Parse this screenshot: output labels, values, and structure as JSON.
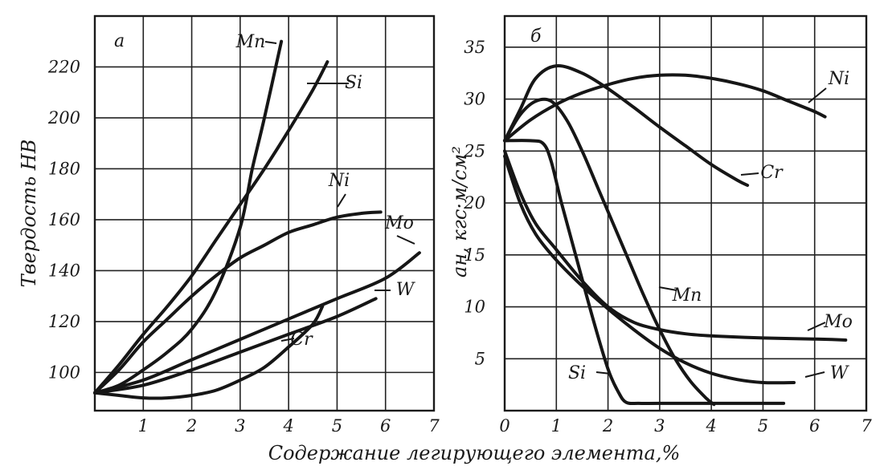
{
  "xlabel_common": "Содержание легирующего элемента,%",
  "chart_data": [
    {
      "type": "line",
      "panel_label": "а",
      "ylabel": "Твердость HB",
      "xlabel": "Содержание легирующего элемента,%",
      "xlim": [
        0,
        7
      ],
      "ylim": [
        85,
        240
      ],
      "x_ticks": [
        "1",
        "2",
        "3",
        "4",
        "5",
        "6",
        "7"
      ],
      "y_ticks": [
        "100",
        "120",
        "140",
        "160",
        "180",
        "200",
        "220"
      ],
      "x_tick_values": [
        1,
        2,
        3,
        4,
        5,
        6,
        7
      ],
      "y_tick_values": [
        100,
        120,
        140,
        160,
        180,
        200,
        220
      ],
      "grid": true,
      "series": [
        {
          "name": "Mn",
          "x": [
            0,
            0.5,
            1,
            1.5,
            2,
            2.5,
            3,
            3.25,
            3.5,
            3.85
          ],
          "y": [
            92,
            95,
            101,
            108,
            117,
            132,
            157,
            180,
            200,
            230
          ]
        },
        {
          "name": "Si",
          "x": [
            0,
            0.5,
            1,
            1.5,
            2,
            2.5,
            3,
            3.5,
            4,
            4.5,
            4.8
          ],
          "y": [
            92,
            103,
            115,
            126,
            138,
            152,
            166,
            180,
            195,
            211,
            222
          ]
        },
        {
          "name": "Ni",
          "x": [
            0,
            0.5,
            1,
            1.5,
            2,
            2.5,
            3,
            3.5,
            4,
            4.5,
            5,
            5.5,
            5.9
          ],
          "y": [
            92,
            101,
            112,
            121,
            130,
            138,
            145,
            150,
            155,
            158,
            161,
            162.5,
            163
          ]
        },
        {
          "name": "Mo",
          "x": [
            0,
            1,
            2,
            3,
            4,
            5,
            6,
            6.7
          ],
          "y": [
            92,
            97,
            105,
            113,
            121,
            129,
            137,
            147
          ]
        },
        {
          "name": "W",
          "x": [
            0,
            1,
            2,
            3,
            4,
            5,
            5.8
          ],
          "y": [
            92,
            95,
            101,
            108,
            115,
            122,
            129
          ]
        },
        {
          "name": "Cr",
          "x": [
            0,
            0.5,
            1,
            1.5,
            2,
            2.5,
            3,
            3.5,
            4,
            4.5,
            4.7
          ],
          "y": [
            92,
            91,
            90,
            90,
            91,
            93,
            97,
            102,
            110,
            119,
            126
          ]
        }
      ]
    },
    {
      "type": "line",
      "panel_label": "б",
      "ylabel": "aн, кгс·м/см²",
      "xlabel": "Содержание легирующего элемента,%",
      "xlim": [
        0,
        7
      ],
      "ylim": [
        0,
        38
      ],
      "x_ticks": [
        "0",
        "1",
        "2",
        "3",
        "4",
        "5",
        "6",
        "7"
      ],
      "y_ticks": [
        "5",
        "10",
        "15",
        "20",
        "25",
        "30",
        "35"
      ],
      "x_tick_values": [
        0,
        1,
        2,
        3,
        4,
        5,
        6,
        7
      ],
      "y_tick_values": [
        5,
        10,
        15,
        20,
        25,
        30,
        35
      ],
      "grid": true,
      "series": [
        {
          "name": "Ni",
          "x": [
            0,
            0.5,
            1,
            1.5,
            2,
            2.5,
            3,
            3.5,
            4,
            4.5,
            5,
            5.5,
            6,
            6.2
          ],
          "y": [
            26,
            28,
            29.5,
            30.6,
            31.4,
            32,
            32.3,
            32.3,
            32,
            31.5,
            30.8,
            29.8,
            28.8,
            28.3
          ]
        },
        {
          "name": "Cr",
          "x": [
            0,
            0.3,
            0.6,
            1,
            1.5,
            2,
            2.5,
            3,
            3.5,
            4,
            4.5,
            4.7
          ],
          "y": [
            26,
            29,
            32,
            33.2,
            32.5,
            31,
            29.2,
            27.3,
            25.5,
            23.7,
            22.2,
            21.7
          ]
        },
        {
          "name": "Mn",
          "x": [
            0,
            0.3,
            0.6,
            0.9,
            1.2,
            1.5,
            1.8,
            2.1,
            2.4,
            2.7,
            3,
            3.3,
            3.6,
            3.9,
            4.05
          ],
          "y": [
            26,
            28.5,
            29.8,
            29.8,
            28,
            25,
            21.5,
            18,
            14.5,
            11,
            7.8,
            5,
            2.8,
            1.2,
            0.6
          ]
        },
        {
          "name": "Si",
          "x": [
            0,
            0.5,
            0.75,
            0.9,
            1.1,
            1.4,
            1.7,
            2,
            2.2,
            2.35,
            2.6,
            3,
            4,
            5,
            5.4
          ],
          "y": [
            26,
            26,
            25.7,
            24,
            20,
            14.5,
            9,
            4,
            1.8,
            0.8,
            0.7,
            0.7,
            0.7,
            0.7,
            0.7
          ]
        },
        {
          "name": "Mo",
          "x": [
            0,
            0.3,
            0.6,
            1,
            1.5,
            2,
            2.5,
            3,
            3.5,
            4,
            5,
            6,
            6.6
          ],
          "y": [
            25,
            21,
            18,
            15.5,
            12.5,
            10,
            8.5,
            7.8,
            7.4,
            7.2,
            7,
            6.9,
            6.8
          ]
        },
        {
          "name": "W",
          "x": [
            0,
            0.3,
            0.6,
            1,
            1.5,
            2,
            2.5,
            3,
            3.5,
            4,
            4.5,
            5,
            5.6
          ],
          "y": [
            24.5,
            20,
            17,
            14.5,
            12,
            9.8,
            7.8,
            6,
            4.6,
            3.6,
            3,
            2.7,
            2.7
          ]
        }
      ]
    }
  ]
}
